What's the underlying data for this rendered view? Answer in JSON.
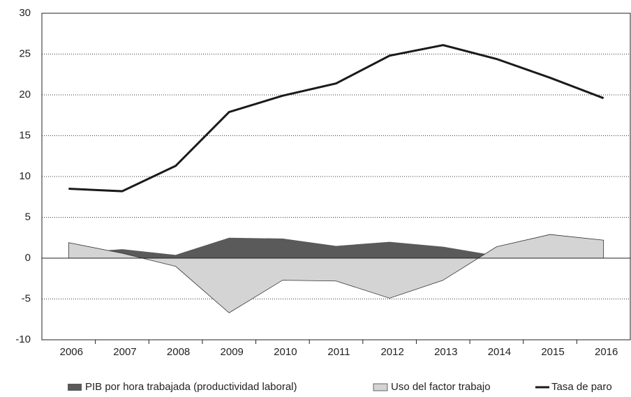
{
  "chart_data": {
    "type": "line",
    "categories": [
      "2006",
      "2007",
      "2008",
      "2009",
      "2010",
      "2011",
      "2012",
      "2013",
      "2014",
      "2015",
      "2016"
    ],
    "series": [
      {
        "name": "PIB por hora trabajada (productividad laboral)",
        "type": "area",
        "color": "#5a5a5a",
        "values": [
          0.6,
          1.1,
          0.4,
          2.5,
          2.4,
          1.5,
          2.0,
          1.4,
          0.3,
          0.5,
          0.5
        ]
      },
      {
        "name": "Uso del factor trabajo",
        "type": "area",
        "color": "#d4d4d4",
        "values": [
          1.9,
          0.6,
          -1.0,
          -6.7,
          -2.7,
          -2.8,
          -4.9,
          -2.7,
          1.4,
          2.9,
          2.2
        ]
      },
      {
        "name": "Tasa de paro",
        "type": "line",
        "color": "#1a1a1a",
        "values": [
          8.5,
          8.2,
          11.3,
          17.9,
          19.9,
          21.4,
          24.8,
          26.1,
          24.4,
          22.1,
          19.6
        ]
      }
    ],
    "ylim": [
      -10,
      30
    ],
    "yticks": [
      -10,
      -5,
      0,
      5,
      10,
      15,
      20,
      25,
      30
    ],
    "grid": true
  }
}
